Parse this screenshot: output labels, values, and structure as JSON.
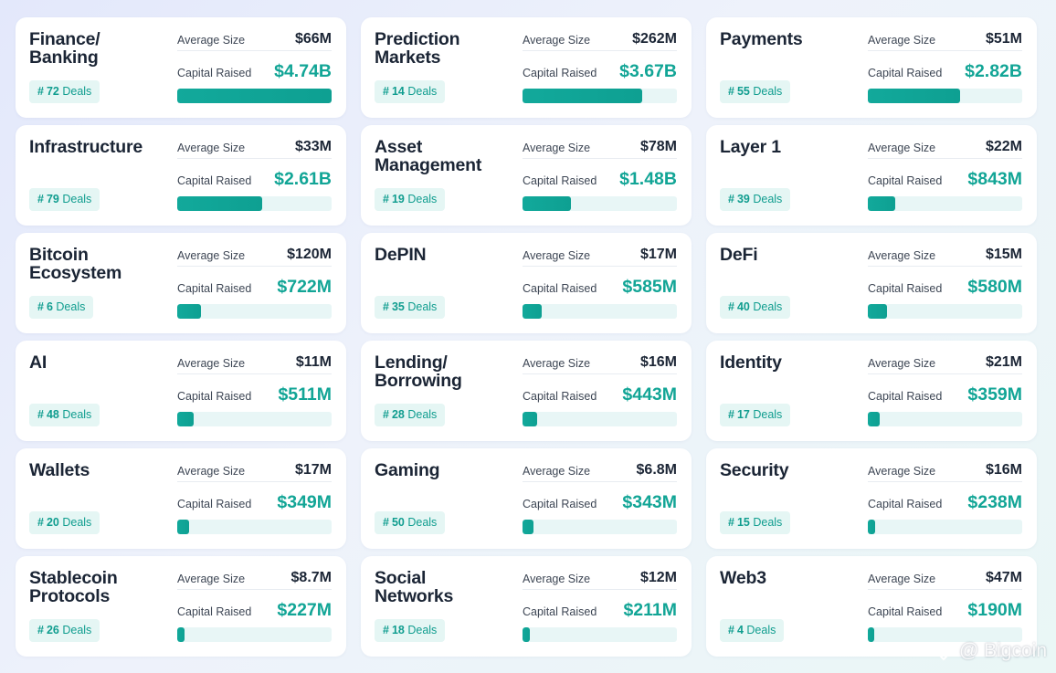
{
  "labels": {
    "average": "Average Size",
    "capital": "Capital Raised",
    "deals_suffix": "Deals",
    "hash": "#"
  },
  "colors": {
    "accent": "#12a596",
    "title": "#1b2535",
    "badge_bg": "#e5f6f4",
    "bar_track": "#e8f6f6"
  },
  "max_capital_b": 4.74,
  "categories": [
    {
      "title": "Finance/\nBanking",
      "deals": "72",
      "avg": "$66M",
      "capital": "$4.74B",
      "capital_b": 4.74
    },
    {
      "title": "Prediction\nMarkets",
      "deals": "14",
      "avg": "$262M",
      "capital": "$3.67B",
      "capital_b": 3.67
    },
    {
      "title": "Payments",
      "deals": "55",
      "avg": "$51M",
      "capital": "$2.82B",
      "capital_b": 2.82
    },
    {
      "title": "Infrastructure",
      "deals": "79",
      "avg": "$33M",
      "capital": "$2.61B",
      "capital_b": 2.61
    },
    {
      "title": "Asset\nManagement",
      "deals": "19",
      "avg": "$78M",
      "capital": "$1.48B",
      "capital_b": 1.48
    },
    {
      "title": "Layer 1",
      "deals": "39",
      "avg": "$22M",
      "capital": "$843M",
      "capital_b": 0.843
    },
    {
      "title": "Bitcoin\nEcosystem",
      "deals": "6",
      "avg": "$120M",
      "capital": "$722M",
      "capital_b": 0.722
    },
    {
      "title": "DePIN",
      "deals": "35",
      "avg": "$17M",
      "capital": "$585M",
      "capital_b": 0.585
    },
    {
      "title": "DeFi",
      "deals": "40",
      "avg": "$15M",
      "capital": "$580M",
      "capital_b": 0.58
    },
    {
      "title": "AI",
      "deals": "48",
      "avg": "$11M",
      "capital": "$511M",
      "capital_b": 0.511
    },
    {
      "title": "Lending/\nBorrowing",
      "deals": "28",
      "avg": "$16M",
      "capital": "$443M",
      "capital_b": 0.443
    },
    {
      "title": "Identity",
      "deals": "17",
      "avg": "$21M",
      "capital": "$359M",
      "capital_b": 0.359
    },
    {
      "title": "Wallets",
      "deals": "20",
      "avg": "$17M",
      "capital": "$349M",
      "capital_b": 0.349
    },
    {
      "title": "Gaming",
      "deals": "50",
      "avg": "$6.8M",
      "capital": "$343M",
      "capital_b": 0.343
    },
    {
      "title": "Security",
      "deals": "15",
      "avg": "$16M",
      "capital": "$238M",
      "capital_b": 0.238
    },
    {
      "title": "Stablecoin\nProtocols",
      "deals": "26",
      "avg": "$8.7M",
      "capital": "$227M",
      "capital_b": 0.227
    },
    {
      "title": "Social\nNetworks",
      "deals": "18",
      "avg": "$12M",
      "capital": "$211M",
      "capital_b": 0.211
    },
    {
      "title": "Web3",
      "deals": "4",
      "avg": "$47M",
      "capital": "$190M",
      "capital_b": 0.19
    }
  ],
  "watermark": {
    "text": "@ Bigcoin",
    "icon": "bigcoin-logo-icon"
  }
}
